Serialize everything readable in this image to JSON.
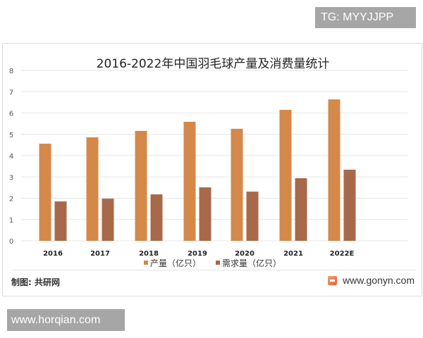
{
  "watermarks": {
    "top_right": "TG: MYYJJPP",
    "bottom_left": "www.horqian.com"
  },
  "footer": {
    "source": "制图: 共研网",
    "site": "www.gonyn.com",
    "logo_icon": "gonyn-logo-icon"
  },
  "colors": {
    "production": "#D4894A",
    "demand": "#A8694A",
    "grid": "#e6e6e6"
  },
  "chart_data": {
    "type": "bar",
    "title": "2016-2022年中国羽毛球产量及消费量统计",
    "categories": [
      "2016",
      "2017",
      "2018",
      "2019",
      "2020",
      "2021",
      "2022E"
    ],
    "series": [
      {
        "name": "产量（亿只）",
        "values": [
          4.56,
          4.86,
          5.16,
          5.59,
          5.26,
          6.15,
          6.64
        ]
      },
      {
        "name": "需求量（亿只）",
        "values": [
          1.85,
          1.98,
          2.18,
          2.51,
          2.31,
          2.94,
          3.34
        ]
      }
    ],
    "xlabel": "",
    "ylabel": "",
    "ylim": [
      0,
      8
    ],
    "yticks": [
      0,
      1,
      2,
      3,
      4,
      5,
      6,
      7,
      8
    ],
    "grid": true,
    "legend_position": "bottom"
  }
}
